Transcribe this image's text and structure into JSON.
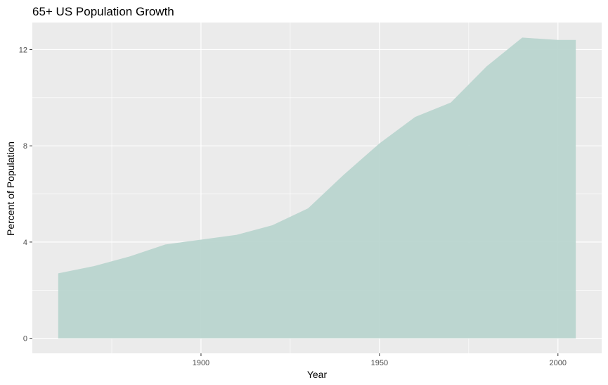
{
  "chart_data": {
    "type": "area",
    "title": "65+ US Population Growth",
    "xlabel": "Year",
    "ylabel": "Percent of Population",
    "x": [
      1860,
      1870,
      1880,
      1890,
      1900,
      1910,
      1920,
      1930,
      1940,
      1950,
      1960,
      1970,
      1980,
      1990,
      2000,
      2005
    ],
    "values": [
      2.7,
      3.0,
      3.4,
      3.9,
      4.1,
      4.3,
      4.7,
      5.4,
      6.8,
      8.1,
      9.2,
      9.8,
      11.3,
      12.5,
      12.4,
      12.4
    ],
    "xlim": [
      1852.75,
      2012.25
    ],
    "ylim": [
      -0.625,
      13.125
    ],
    "x_ticks": [
      1900,
      1950,
      2000
    ],
    "y_ticks": [
      0,
      4,
      8,
      12
    ],
    "x_tick_labels": [
      "1900",
      "1950",
      "2000"
    ],
    "y_tick_labels": [
      "0",
      "4",
      "8",
      "12"
    ],
    "grid": true,
    "legend": "none",
    "colors": {
      "fill": "#b9d5cf",
      "panel": "#ebebeb",
      "grid": "#ffffff"
    }
  }
}
